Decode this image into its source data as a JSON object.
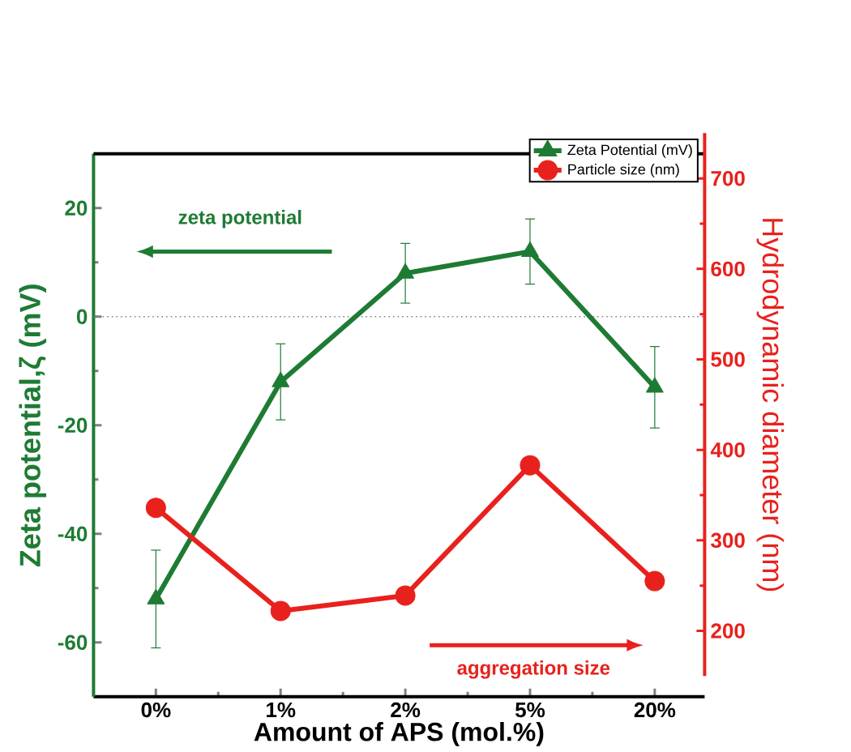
{
  "chart_data": {
    "type": "line",
    "xlabel": "Amount of APS (mol.%)",
    "ylabel": "Zeta potential,ζ (mV)",
    "y2label": "Hydrodynamic diameter (nm)",
    "categories": [
      "0%",
      "1%",
      "2%",
      "5%",
      "20%"
    ],
    "series": [
      {
        "name": "Zeta Potential (mV)",
        "color": "#1e7b34",
        "marker": "triangle",
        "values": [
          -52,
          -12,
          8,
          12,
          -13
        ],
        "errors": [
          9,
          7,
          5.5,
          6,
          7.5
        ]
      },
      {
        "name": "Particle size (nm)",
        "color": "#e8211d",
        "marker": "circle",
        "axis": "y2",
        "values": [
          336,
          222,
          239,
          383,
          255
        ]
      }
    ],
    "ylim": [
      -70,
      30
    ],
    "yticks": [
      -60,
      -40,
      -20,
      0,
      20
    ],
    "y2lim": [
      150,
      750
    ],
    "y2ticks": [
      200,
      300,
      400,
      500,
      600,
      700
    ],
    "ref_lines": [
      {
        "axis": "y",
        "value": 0,
        "line_style": "dotted",
        "color": "#808080"
      }
    ],
    "annotations": [
      "zeta potential",
      "aggregation size"
    ],
    "legend": "top right",
    "line_style": "solid",
    "grid": false
  }
}
